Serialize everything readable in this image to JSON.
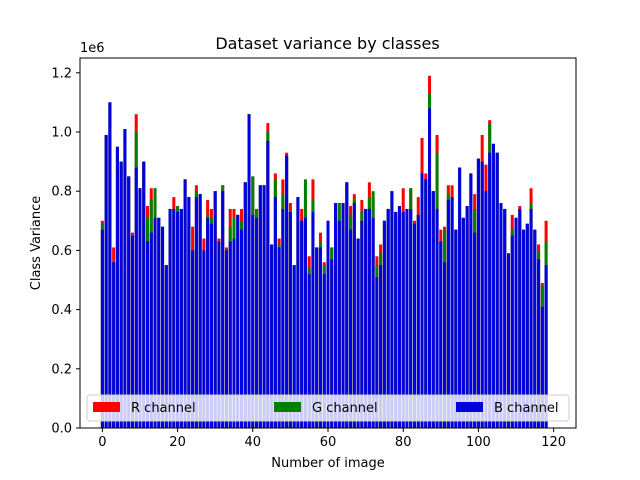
{
  "chart_data": {
    "type": "bar",
    "title": "Dataset variance by classes",
    "xlabel": "Number of image",
    "ylabel": "Class Variance",
    "y_scale_label": "1e6",
    "xlim": [
      -5.95,
      125.95
    ],
    "ylim": [
      0,
      1.25
    ],
    "x_ticks": [
      0,
      20,
      40,
      60,
      80,
      100,
      120
    ],
    "x_tick_labels": [
      "0",
      "20",
      "40",
      "60",
      "80",
      "100",
      "120"
    ],
    "y_ticks": [
      0.0,
      0.2,
      0.4,
      0.6,
      0.8,
      1.0,
      1.2
    ],
    "y_tick_labels": [
      "0.0",
      "0.2",
      "0.4",
      "0.6",
      "0.8",
      "1.0",
      "1.2"
    ],
    "legend_position": "bottom, full width",
    "grid": false,
    "x": [
      0,
      1,
      2,
      3,
      4,
      5,
      6,
      7,
      8,
      9,
      10,
      11,
      12,
      13,
      14,
      15,
      16,
      17,
      18,
      19,
      20,
      21,
      22,
      23,
      24,
      25,
      26,
      27,
      28,
      29,
      30,
      31,
      32,
      33,
      34,
      35,
      36,
      37,
      38,
      39,
      40,
      41,
      42,
      43,
      44,
      45,
      46,
      47,
      48,
      49,
      50,
      51,
      52,
      53,
      54,
      55,
      56,
      57,
      58,
      59,
      60,
      61,
      62,
      63,
      64,
      65,
      66,
      67,
      68,
      69,
      70,
      71,
      72,
      73,
      74,
      75,
      76,
      77,
      78,
      79,
      80,
      81,
      82,
      83,
      84,
      85,
      86,
      87,
      88,
      89,
      90,
      91,
      92,
      93,
      94,
      95,
      96,
      97,
      98,
      99,
      100,
      101,
      102,
      103,
      104,
      105,
      106,
      107,
      108,
      109,
      110,
      111,
      112,
      113,
      114,
      115,
      116,
      117,
      118,
      119
    ],
    "series": [
      {
        "name": "R channel",
        "color": "#ff0000",
        "values": [
          0.7,
          0.99,
          1.1,
          0.61,
          0.95,
          0.9,
          1.01,
          0.85,
          0.66,
          1.06,
          0.81,
          0.9,
          0.75,
          0.81,
          0.81,
          0.71,
          0.68,
          0.55,
          0.74,
          0.78,
          0.75,
          0.74,
          0.84,
          0.78,
          0.68,
          0.82,
          0.79,
          0.64,
          0.77,
          0.74,
          0.8,
          0.64,
          0.82,
          0.61,
          0.74,
          0.74,
          0.72,
          0.74,
          0.83,
          1.06,
          0.85,
          0.74,
          0.82,
          0.82,
          1.03,
          0.62,
          0.86,
          0.64,
          0.84,
          0.93,
          0.76,
          0.55,
          0.78,
          0.74,
          0.77,
          0.58,
          0.84,
          0.61,
          0.66,
          0.56,
          0.7,
          0.61,
          0.76,
          0.76,
          0.76,
          0.83,
          0.75,
          0.79,
          0.64,
          0.77,
          0.74,
          0.83,
          0.78,
          0.58,
          0.62,
          0.7,
          0.74,
          0.8,
          0.73,
          0.75,
          0.81,
          0.74,
          0.81,
          0.7,
          0.78,
          0.98,
          0.86,
          1.19,
          0.8,
          0.99,
          0.67,
          0.68,
          0.82,
          0.82,
          0.67,
          0.88,
          0.71,
          0.75,
          0.86,
          0.79,
          0.91,
          0.99,
          0.89,
          1.04,
          0.96,
          0.93,
          0.76,
          0.74,
          0.59,
          0.72,
          0.71,
          0.75,
          0.67,
          0.69,
          0.81,
          0.67,
          0.62,
          0.49,
          0.7,
          0.0
        ]
      },
      {
        "name": "G channel",
        "color": "#008000",
        "values": [
          0.69,
          0.99,
          1.1,
          0.56,
          0.95,
          0.9,
          1.01,
          0.85,
          0.65,
          1.0,
          0.81,
          0.9,
          0.71,
          0.77,
          0.81,
          0.71,
          0.68,
          0.55,
          0.74,
          0.74,
          0.75,
          0.74,
          0.84,
          0.78,
          0.6,
          0.8,
          0.79,
          0.6,
          0.72,
          0.71,
          0.8,
          0.63,
          0.82,
          0.6,
          0.68,
          0.71,
          0.72,
          0.7,
          0.83,
          1.06,
          0.85,
          0.74,
          0.82,
          0.82,
          1.0,
          0.62,
          0.84,
          0.62,
          0.79,
          0.92,
          0.73,
          0.55,
          0.78,
          0.7,
          0.84,
          0.54,
          0.77,
          0.61,
          0.63,
          0.55,
          0.7,
          0.61,
          0.76,
          0.76,
          0.76,
          0.83,
          0.72,
          0.77,
          0.64,
          0.73,
          0.74,
          0.78,
          0.8,
          0.55,
          0.59,
          0.7,
          0.74,
          0.8,
          0.73,
          0.75,
          0.73,
          0.74,
          0.81,
          0.69,
          0.72,
          0.86,
          0.84,
          1.13,
          0.8,
          0.93,
          0.63,
          0.67,
          0.79,
          0.78,
          0.67,
          0.88,
          0.71,
          0.75,
          0.86,
          0.74,
          0.91,
          0.9,
          0.8,
          1.03,
          0.96,
          0.93,
          0.76,
          0.74,
          0.59,
          0.67,
          0.71,
          0.74,
          0.67,
          0.69,
          0.76,
          0.67,
          0.6,
          0.48,
          0.63,
          0.0
        ]
      },
      {
        "name": "B channel",
        "color": "#0000e0",
        "values": [
          0.67,
          0.99,
          1.1,
          0.56,
          0.95,
          0.9,
          1.01,
          0.85,
          0.65,
          0.88,
          0.81,
          0.9,
          0.63,
          0.66,
          0.71,
          0.71,
          0.68,
          0.55,
          0.74,
          0.74,
          0.73,
          0.74,
          0.84,
          0.78,
          0.6,
          0.78,
          0.79,
          0.6,
          0.71,
          0.69,
          0.8,
          0.63,
          0.8,
          0.6,
          0.63,
          0.64,
          0.72,
          0.67,
          0.83,
          1.06,
          0.72,
          0.71,
          0.82,
          0.82,
          0.97,
          0.62,
          0.78,
          0.61,
          0.74,
          0.92,
          0.73,
          0.55,
          0.78,
          0.7,
          0.71,
          0.52,
          0.73,
          0.61,
          0.61,
          0.52,
          0.7,
          0.57,
          0.76,
          0.7,
          0.76,
          0.83,
          0.67,
          0.76,
          0.64,
          0.7,
          0.74,
          0.74,
          0.71,
          0.51,
          0.55,
          0.7,
          0.74,
          0.8,
          0.73,
          0.75,
          0.73,
          0.74,
          0.74,
          0.69,
          0.72,
          0.86,
          0.84,
          1.08,
          0.8,
          0.74,
          0.63,
          0.56,
          0.77,
          0.78,
          0.67,
          0.88,
          0.71,
          0.75,
          0.86,
          0.66,
          0.91,
          0.9,
          0.8,
          0.93,
          0.96,
          0.93,
          0.76,
          0.74,
          0.59,
          0.65,
          0.71,
          0.74,
          0.67,
          0.69,
          0.74,
          0.67,
          0.57,
          0.41,
          0.55,
          0.0
        ]
      }
    ]
  }
}
